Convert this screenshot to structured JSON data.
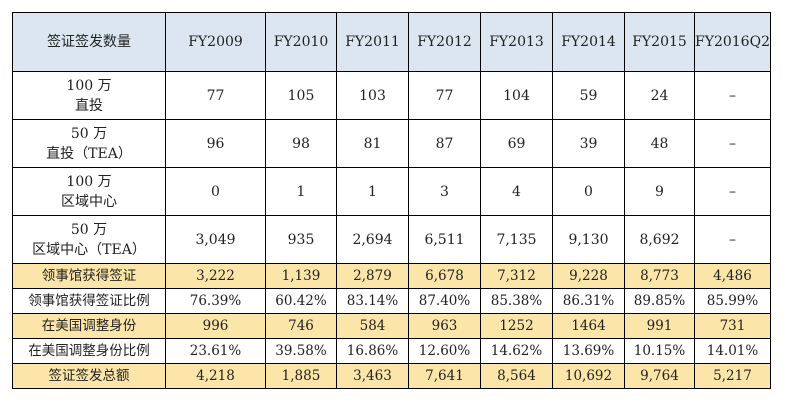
{
  "table": {
    "header": [
      "签证签发数量",
      "FY2009",
      "FY2010",
      "FY2011",
      "FY2012",
      "FY2013",
      "FY2014",
      "FY2015",
      "FY2016Q2"
    ],
    "rows": [
      {
        "label_line1": "100 万",
        "label_line2": "直投",
        "values": [
          "77",
          "105",
          "103",
          "77",
          "104",
          "59",
          "24",
          "–"
        ]
      },
      {
        "label_line1": "50 万",
        "label_line2": "直投（TEA）",
        "values": [
          "96",
          "98",
          "81",
          "87",
          "69",
          "39",
          "48",
          "–"
        ]
      },
      {
        "label_line1": "100 万",
        "label_line2": "区域中心",
        "values": [
          "0",
          "1",
          "1",
          "3",
          "4",
          "0",
          "9",
          "–"
        ]
      },
      {
        "label_line1": "50 万",
        "label_line2": "区域中心（TEA）",
        "values": [
          "3,049",
          "935",
          "2,694",
          "6,511",
          "7,135",
          "9,130",
          "8,692",
          "–"
        ]
      },
      {
        "label": "领事馆获得签证",
        "values": [
          "3,222",
          "1,139",
          "2,879",
          "6,678",
          "7,312",
          "9,228",
          "8,773",
          "4,486"
        ]
      },
      {
        "label": "领事馆获得签证比例",
        "values": [
          "76.39%",
          "60.42%",
          "83.14%",
          "87.40%",
          "85.38%",
          "86.31%",
          "89.85%",
          "85.99%"
        ]
      },
      {
        "label": "在美国调整身份",
        "values": [
          "996",
          "746",
          "584",
          "963",
          "1252",
          "1464",
          "991",
          "731"
        ]
      },
      {
        "label": "在美国调整身份比例",
        "values": [
          "23.61%",
          "39.58%",
          "16.86%",
          "12.60%",
          "14.62%",
          "13.69%",
          "10.15%",
          "14.01%"
        ]
      },
      {
        "label": "签证签发总额",
        "values": [
          "4,218",
          "1,885",
          "3,463",
          "7,641",
          "8,564",
          "10,692",
          "9,764",
          "5,217"
        ]
      }
    ]
  },
  "colors": {
    "header_bg": "#dce6f1",
    "highlight_bg": "#fbe5a8"
  }
}
